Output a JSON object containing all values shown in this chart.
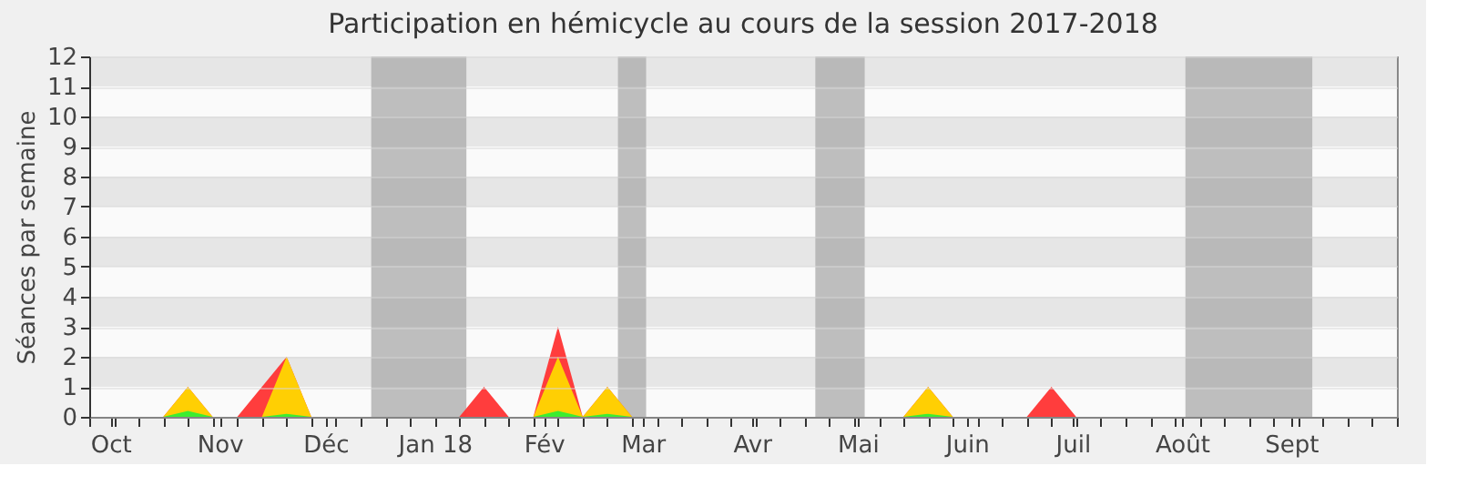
{
  "chart_data": {
    "type": "area",
    "title": "Participation en hémicycle au cours de la session 2017-2018",
    "ylabel": "Séances par semaine",
    "x": [
      "2017-09-25",
      "2017-10-02",
      "2017-10-09",
      "2017-10-16",
      "2017-10-23",
      "2017-10-30",
      "2017-11-06",
      "2017-11-13",
      "2017-11-20",
      "2017-11-27",
      "2017-12-04",
      "2017-12-11",
      "2017-12-18",
      "2017-12-25",
      "2018-01-01",
      "2018-01-08",
      "2018-01-15",
      "2018-01-22",
      "2018-01-29",
      "2018-02-05",
      "2018-02-12",
      "2018-02-19",
      "2018-02-26",
      "2018-03-05",
      "2018-03-12",
      "2018-03-19",
      "2018-03-26",
      "2018-04-02",
      "2018-04-09",
      "2018-04-16",
      "2018-04-23",
      "2018-04-30",
      "2018-05-07",
      "2018-05-14",
      "2018-05-21",
      "2018-05-28",
      "2018-06-04",
      "2018-06-11",
      "2018-06-18",
      "2018-06-25",
      "2018-07-02",
      "2018-07-09",
      "2018-07-16",
      "2018-07-23",
      "2018-07-30",
      "2018-08-06",
      "2018-08-13",
      "2018-08-20",
      "2018-08-27",
      "2018-09-03",
      "2018-09-10",
      "2018-09-17",
      "2018-09-24"
    ],
    "series": [
      {
        "color": "#ff3333",
        "values": [
          0,
          0,
          0,
          0,
          1,
          0,
          0,
          1,
          2,
          0,
          0,
          0,
          0,
          0,
          0,
          0,
          1,
          0,
          0,
          3,
          0,
          1,
          0,
          0,
          0,
          0,
          0,
          0,
          0,
          0,
          0,
          0,
          0,
          0,
          1,
          0,
          0,
          0,
          0,
          1,
          0,
          0,
          0,
          0,
          0,
          0,
          0,
          0,
          0,
          0,
          0,
          0,
          0
        ]
      },
      {
        "color": "#ffd700",
        "values": [
          0,
          0,
          0,
          0,
          1,
          0,
          0,
          0,
          2,
          0,
          0,
          0,
          0,
          0,
          0,
          0,
          0,
          0,
          0,
          2,
          0,
          1,
          0,
          0,
          0,
          0,
          0,
          0,
          0,
          0,
          0,
          0,
          0,
          0,
          1,
          0,
          0,
          0,
          0,
          0,
          0,
          0,
          0,
          0,
          0,
          0,
          0,
          0,
          0,
          0,
          0,
          0,
          0
        ]
      },
      {
        "color": "#33ee33",
        "values": [
          0,
          0,
          0,
          0,
          0.2,
          0,
          0,
          0,
          0.1,
          0,
          0,
          0,
          0,
          0,
          0,
          0,
          0,
          0,
          0,
          0.2,
          0,
          0.1,
          0,
          0,
          0,
          0,
          0,
          0,
          0,
          0,
          0,
          0,
          0,
          0,
          0.1,
          0,
          0,
          0,
          0,
          0,
          0,
          0,
          0,
          0,
          0,
          0,
          0,
          0,
          0,
          0,
          0,
          0,
          0
        ]
      }
    ],
    "xlim": [
      "2017-09-25",
      "2018-10-01"
    ],
    "xticks": [
      {
        "value": "2017-10-01",
        "label": "Oct"
      },
      {
        "value": "2017-11-01",
        "label": "Nov"
      },
      {
        "value": "2017-12-01",
        "label": "Déc"
      },
      {
        "value": "2018-01-01",
        "label": "Jan 18"
      },
      {
        "value": "2018-02-01",
        "label": "Fév"
      },
      {
        "value": "2018-03-01",
        "label": "Mar"
      },
      {
        "value": "2018-04-01",
        "label": "Avr"
      },
      {
        "value": "2018-05-01",
        "label": "Mai"
      },
      {
        "value": "2018-06-01",
        "label": "Juin"
      },
      {
        "value": "2018-07-01",
        "label": "Juil"
      },
      {
        "value": "2018-08-01",
        "label": "Août"
      },
      {
        "value": "2018-09-01",
        "label": "Sept"
      },
      {
        "value": "2017-09-25",
        "label": null
      },
      {
        "value": "2017-10-02",
        "label": null
      },
      {
        "value": "2017-10-09",
        "label": null
      },
      {
        "value": "2017-10-16",
        "label": null
      },
      {
        "value": "2017-10-23",
        "label": null
      },
      {
        "value": "2017-10-30",
        "label": null
      },
      {
        "value": "2017-11-06",
        "label": null
      },
      {
        "value": "2017-11-13",
        "label": null
      },
      {
        "value": "2017-11-20",
        "label": null
      },
      {
        "value": "2017-11-27",
        "label": null
      },
      {
        "value": "2017-12-04",
        "label": null
      },
      {
        "value": "2017-12-11",
        "label": null
      },
      {
        "value": "2017-12-18",
        "label": null
      },
      {
        "value": "2017-12-25",
        "label": null
      },
      {
        "value": "2018-01-08",
        "label": null
      },
      {
        "value": "2018-01-15",
        "label": null
      },
      {
        "value": "2018-01-22",
        "label": null
      },
      {
        "value": "2018-01-29",
        "label": null
      },
      {
        "value": "2018-02-05",
        "label": null
      },
      {
        "value": "2018-02-12",
        "label": null
      },
      {
        "value": "2018-02-19",
        "label": null
      },
      {
        "value": "2018-02-26",
        "label": null
      },
      {
        "value": "2018-03-05",
        "label": null
      },
      {
        "value": "2018-03-12",
        "label": null
      },
      {
        "value": "2018-03-19",
        "label": null
      },
      {
        "value": "2018-03-26",
        "label": null
      },
      {
        "value": "2018-04-02",
        "label": null
      },
      {
        "value": "2018-04-09",
        "label": null
      },
      {
        "value": "2018-04-16",
        "label": null
      },
      {
        "value": "2018-04-23",
        "label": null
      },
      {
        "value": "2018-04-30",
        "label": null
      },
      {
        "value": "2018-05-07",
        "label": null
      },
      {
        "value": "2018-05-14",
        "label": null
      },
      {
        "value": "2018-05-21",
        "label": null
      },
      {
        "value": "2018-05-28",
        "label": null
      },
      {
        "value": "2018-06-04",
        "label": null
      },
      {
        "value": "2018-06-11",
        "label": null
      },
      {
        "value": "2018-06-18",
        "label": null
      },
      {
        "value": "2018-06-25",
        "label": null
      },
      {
        "value": "2018-07-02",
        "label": null
      },
      {
        "value": "2018-07-09",
        "label": null
      },
      {
        "value": "2018-07-16",
        "label": null
      },
      {
        "value": "2018-07-23",
        "label": null
      },
      {
        "value": "2018-07-30",
        "label": null
      },
      {
        "value": "2018-08-06",
        "label": null
      },
      {
        "value": "2018-08-13",
        "label": null
      },
      {
        "value": "2018-08-20",
        "label": null
      },
      {
        "value": "2018-08-27",
        "label": null
      },
      {
        "value": "2018-09-03",
        "label": null
      },
      {
        "value": "2018-09-10",
        "label": null
      },
      {
        "value": "2018-09-17",
        "label": null
      },
      {
        "value": "2018-09-24",
        "label": null
      },
      {
        "value": "2018-10-01",
        "label": null
      }
    ],
    "ylim": [
      0,
      12
    ],
    "yticks": [
      0,
      1,
      2,
      3,
      4,
      5,
      6,
      7,
      8,
      9,
      10,
      11,
      12
    ],
    "grid": "y",
    "bands": [
      {
        "axis": "x",
        "from": "2017-12-14",
        "to": "2018-01-10",
        "color": "#aaaaaa"
      },
      {
        "axis": "x",
        "from": "2018-02-22",
        "to": "2018-03-02",
        "color": "#aaaaaa"
      },
      {
        "axis": "x",
        "from": "2018-04-19",
        "to": "2018-05-03",
        "color": "#aaaaaa"
      },
      {
        "axis": "x",
        "from": "2018-08-02",
        "to": "2018-09-07",
        "color": "#aaaaaa"
      }
    ]
  }
}
